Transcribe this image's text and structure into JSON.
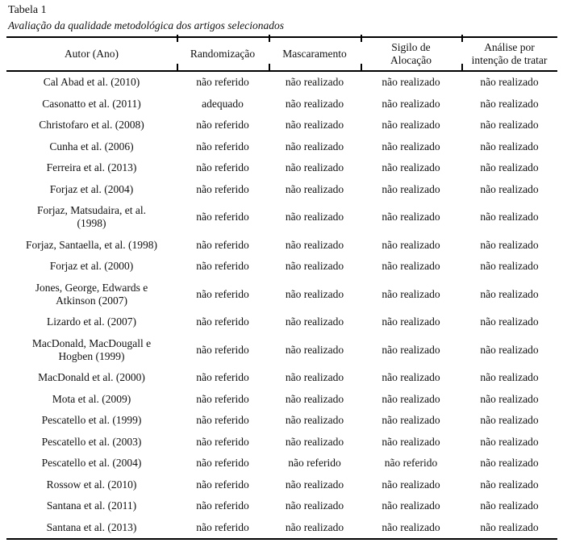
{
  "page": {
    "title": "Tabela 1",
    "subtitle": "Avaliação da qualidade metodológica dos artigos selecionados"
  },
  "colors": {
    "text": "#111111",
    "rule": "#000000",
    "background": "#ffffff"
  },
  "table": {
    "columns": [
      "Autor (Ano)",
      "Randomização",
      "Mascaramento",
      "Sigilo de\nAlocação",
      "Análise por\nintenção de tratar"
    ],
    "rows": [
      [
        "Cal Abad et al. (2010)",
        "não referido",
        "não realizado",
        "não realizado",
        "não realizado"
      ],
      [
        "Casonatto et al. (2011)",
        "adequado",
        "não realizado",
        "não realizado",
        "não realizado"
      ],
      [
        "Christofaro et al. (2008)",
        "não referido",
        "não realizado",
        "não realizado",
        "não realizado"
      ],
      [
        "Cunha et al. (2006)",
        "não referido",
        "não realizado",
        "não realizado",
        "não realizado"
      ],
      [
        "Ferreira et al. (2013)",
        "não referido",
        "não realizado",
        "não realizado",
        "não realizado"
      ],
      [
        "Forjaz et al. (2004)",
        "não referido",
        "não realizado",
        "não realizado",
        "não realizado"
      ],
      [
        "Forjaz, Matsudaira, et al.\n(1998)",
        "não referido",
        "não realizado",
        "não realizado",
        "não realizado"
      ],
      [
        "Forjaz, Santaella, et al. (1998)",
        "não referido",
        "não realizado",
        "não realizado",
        "não realizado"
      ],
      [
        "Forjaz et al. (2000)",
        "não referido",
        "não realizado",
        "não realizado",
        "não realizado"
      ],
      [
        "Jones, George, Edwards e\nAtkinson (2007)",
        "não referido",
        "não realizado",
        "não realizado",
        "não realizado"
      ],
      [
        "Lizardo et al. (2007)",
        "não referido",
        "não realizado",
        "não realizado",
        "não realizado"
      ],
      [
        "MacDonald, MacDougall e\nHogben (1999)",
        "não referido",
        "não realizado",
        "não realizado",
        "não realizado"
      ],
      [
        "MacDonald et al. (2000)",
        "não referido",
        "não realizado",
        "não realizado",
        "não realizado"
      ],
      [
        "Mota et al. (2009)",
        "não referido",
        "não realizado",
        "não realizado",
        "não realizado"
      ],
      [
        "Pescatello et al. (1999)",
        "não referido",
        "não realizado",
        "não realizado",
        "não realizado"
      ],
      [
        "Pescatello et al. (2003)",
        "não referido",
        "não realizado",
        "não realizado",
        "não realizado"
      ],
      [
        "Pescatello et al. (2004)",
        "não referido",
        "não referido",
        "não referido",
        "não realizado"
      ],
      [
        "Rossow et al. (2010)",
        "não referido",
        "não realizado",
        "não realizado",
        "não realizado"
      ],
      [
        "Santana et al. (2011)",
        "não referido",
        "não realizado",
        "não realizado",
        "não realizado"
      ],
      [
        "Santana et al. (2013)",
        "não referido",
        "não realizado",
        "não realizado",
        "não realizado"
      ]
    ]
  }
}
